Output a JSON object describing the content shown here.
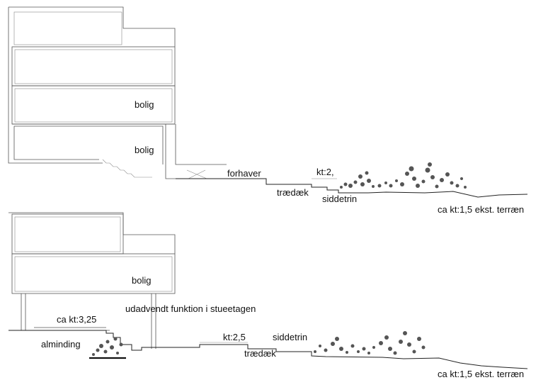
{
  "section_top": {
    "labels": {
      "room_upper": "bolig",
      "room_lower": "bolig",
      "front_garden": "forhaver",
      "level_deck": "kt:2,",
      "deck": "trædæk",
      "seat_steps": "siddetrin",
      "terrain": "ca kt:1,5 ekst. terræn"
    }
  },
  "section_bottom": {
    "labels": {
      "room": "bolig",
      "ground_floor_function": "udadvendt funktion i stueetagen",
      "level_commons": "ca kt:3,25",
      "commons": "alminding",
      "level_deck": "kt:2,5",
      "seat_steps": "siddetrin",
      "deck": "trædæk",
      "terrain": "ca kt:1,5 ekst. terræn"
    }
  }
}
